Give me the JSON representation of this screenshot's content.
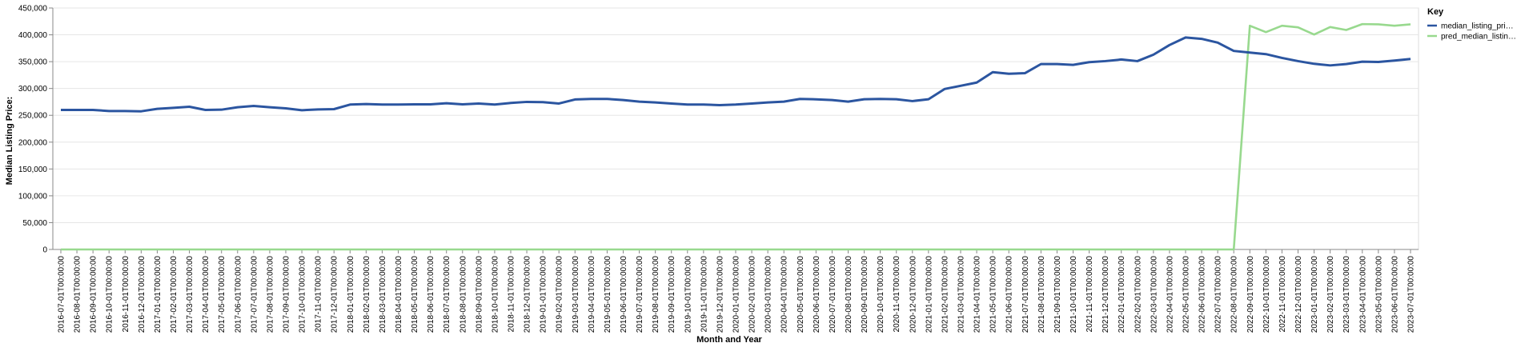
{
  "chart_data": {
    "type": "line",
    "xlabel": "Month and Year",
    "ylabel": "Median Listing Price:",
    "ylim": [
      0,
      450000
    ],
    "y_ticks": [
      "0",
      "50,000",
      "100,000",
      "150,000",
      "200,000",
      "250,000",
      "300,000",
      "350,000",
      "400,000",
      "450,000"
    ],
    "grid": true,
    "legend": {
      "title": "Key",
      "placement": "top-right"
    },
    "x": [
      "2016-07-01T00:00:00",
      "2016-08-01T00:00:00",
      "2016-09-01T00:00:00",
      "2016-10-01T00:00:00",
      "2016-11-01T00:00:00",
      "2016-12-01T00:00:00",
      "2017-01-01T00:00:00",
      "2017-02-01T00:00:00",
      "2017-03-01T00:00:00",
      "2017-04-01T00:00:00",
      "2017-05-01T00:00:00",
      "2017-06-01T00:00:00",
      "2017-07-01T00:00:00",
      "2017-08-01T00:00:00",
      "2017-09-01T00:00:00",
      "2017-10-01T00:00:00",
      "2017-11-01T00:00:00",
      "2017-12-01T00:00:00",
      "2018-01-01T00:00:00",
      "2018-02-01T00:00:00",
      "2018-03-01T00:00:00",
      "2018-04-01T00:00:00",
      "2018-05-01T00:00:00",
      "2018-06-01T00:00:00",
      "2018-07-01T00:00:00",
      "2018-08-01T00:00:00",
      "2018-09-01T00:00:00",
      "2018-10-01T00:00:00",
      "2018-11-01T00:00:00",
      "2018-12-01T00:00:00",
      "2019-01-01T00:00:00",
      "2019-02-01T00:00:00",
      "2019-03-01T00:00:00",
      "2019-04-01T00:00:00",
      "2019-05-01T00:00:00",
      "2019-06-01T00:00:00",
      "2019-07-01T00:00:00",
      "2019-08-01T00:00:00",
      "2019-09-01T00:00:00",
      "2019-10-01T00:00:00",
      "2019-11-01T00:00:00",
      "2019-12-01T00:00:00",
      "2020-01-01T00:00:00",
      "2020-02-01T00:00:00",
      "2020-03-01T00:00:00",
      "2020-04-01T00:00:00",
      "2020-05-01T00:00:00",
      "2020-06-01T00:00:00",
      "2020-07-01T00:00:00",
      "2020-08-01T00:00:00",
      "2020-09-01T00:00:00",
      "2020-10-01T00:00:00",
      "2020-11-01T00:00:00",
      "2020-12-01T00:00:00",
      "2021-01-01T00:00:00",
      "2021-02-01T00:00:00",
      "2021-03-01T00:00:00",
      "2021-04-01T00:00:00",
      "2021-05-01T00:00:00",
      "2021-06-01T00:00:00",
      "2021-07-01T00:00:00",
      "2021-08-01T00:00:00",
      "2021-09-01T00:00:00",
      "2021-10-01T00:00:00",
      "2021-11-01T00:00:00",
      "2021-12-01T00:00:00",
      "2022-01-01T00:00:00",
      "2022-02-01T00:00:00",
      "2022-03-01T00:00:00",
      "2022-04-01T00:00:00",
      "2022-05-01T00:00:00",
      "2022-06-01T00:00:00",
      "2022-07-01T00:00:00",
      "2022-08-01T00:00:00",
      "2022-09-01T00:00:00",
      "2022-10-01T00:00:00",
      "2022-11-01T00:00:00",
      "2022-12-01T00:00:00",
      "2023-01-01T00:00:00",
      "2023-02-01T00:00:00",
      "2023-03-01T00:00:00",
      "2023-04-01T00:00:00",
      "2023-05-01T00:00:00",
      "2023-06-01T00:00:00",
      "2023-07-01T00:00:00"
    ],
    "series": [
      {
        "name": "median_listing_pri…",
        "color": "#2b55a0",
        "values": [
          260000,
          260000,
          260000,
          258000,
          258000,
          257500,
          262000,
          264000,
          266000,
          260000,
          260500,
          265000,
          267500,
          265000,
          263000,
          259500,
          261000,
          261500,
          270000,
          271000,
          270000,
          270000,
          270500,
          270500,
          272500,
          270500,
          272000,
          270000,
          273000,
          275000,
          274500,
          272000,
          279500,
          280500,
          280500,
          278500,
          275500,
          274000,
          272000,
          270000,
          270000,
          269000,
          270000,
          272000,
          274000,
          275500,
          280500,
          279800,
          278500,
          275500,
          280000,
          280500,
          280000,
          276500,
          280000,
          299000,
          305000,
          311000,
          330500,
          327500,
          328500,
          345500,
          345500,
          344000,
          349000,
          351000,
          354000,
          351000,
          363000,
          381000,
          395000,
          392500,
          385500,
          370000,
          367000,
          364000,
          357000,
          351000,
          346000,
          343000,
          345500,
          350000,
          349500,
          352000,
          355000
        ]
      },
      {
        "name": "pred_median_listin…",
        "color": "#98d98e",
        "values": [
          0,
          0,
          0,
          0,
          0,
          0,
          0,
          0,
          0,
          0,
          0,
          0,
          0,
          0,
          0,
          0,
          0,
          0,
          0,
          0,
          0,
          0,
          0,
          0,
          0,
          0,
          0,
          0,
          0,
          0,
          0,
          0,
          0,
          0,
          0,
          0,
          0,
          0,
          0,
          0,
          0,
          0,
          0,
          0,
          0,
          0,
          0,
          0,
          0,
          0,
          0,
          0,
          0,
          0,
          0,
          0,
          0,
          0,
          0,
          0,
          0,
          0,
          0,
          0,
          0,
          0,
          0,
          0,
          0,
          0,
          0,
          0,
          0,
          0,
          417000,
          405000,
          417000,
          414000,
          400500,
          414500,
          409000,
          420000,
          419500,
          417000,
          419500
        ]
      }
    ]
  }
}
